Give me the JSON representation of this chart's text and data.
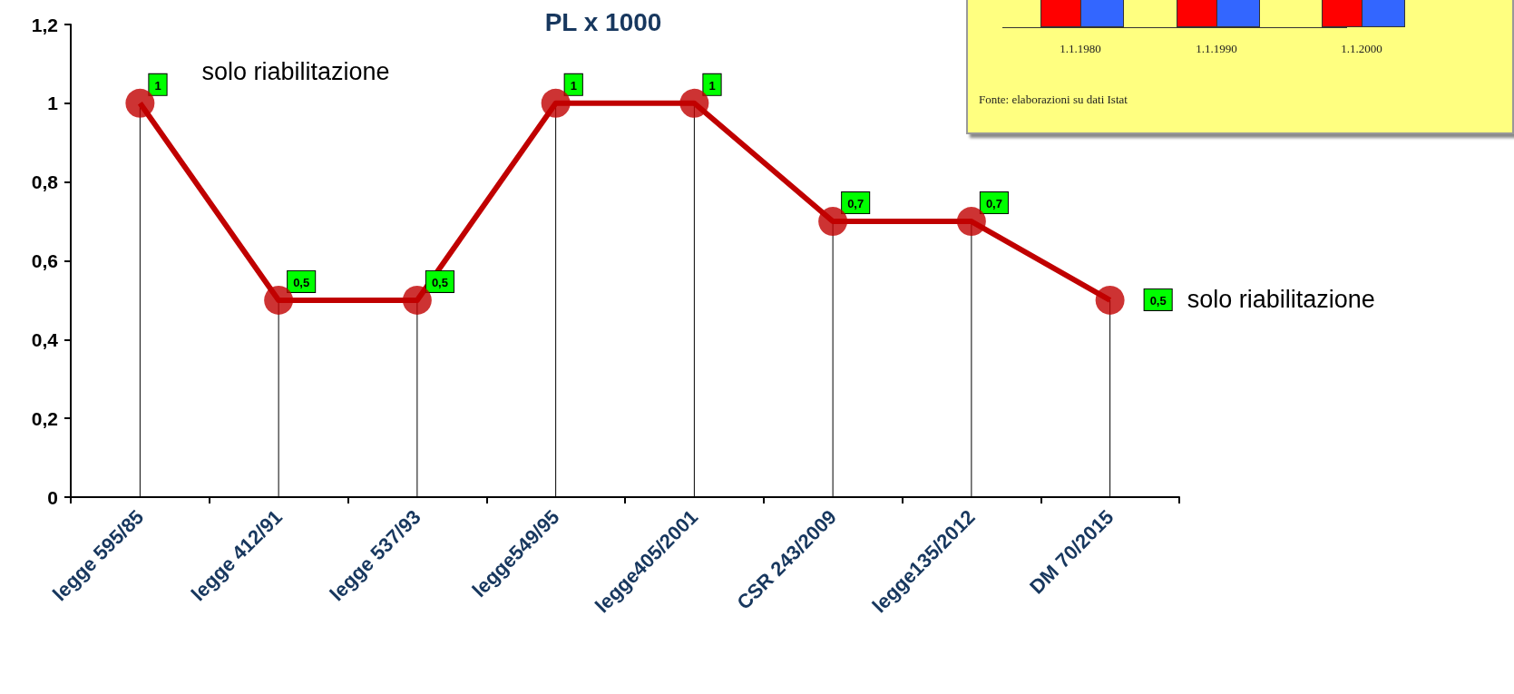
{
  "chart_data": {
    "type": "line",
    "title": "PL x 1000",
    "categories": [
      "legge 595/85",
      "legge 412/91",
      "legge 537/93",
      "legge549/95",
      "legge405/2001",
      "CSR 243/2009",
      "legge135/2012",
      "DM 70/2015"
    ],
    "series": [
      {
        "color": "#c00000",
        "values": [
          1,
          0.5,
          0.5,
          1,
          1,
          0.7,
          0.7,
          0.5
        ]
      },
      {
        "type": "lollipop",
        "color": "#c00000",
        "values": [
          1,
          0.5,
          0.5,
          1,
          1,
          0.7,
          0.7,
          0.5
        ]
      }
    ],
    "ylim": [
      0,
      1.2
    ],
    "yticks": [
      {
        "value": 0,
        "label": "0"
      },
      {
        "value": 0.2,
        "label": "0,2"
      },
      {
        "value": 0.4,
        "label": "0,4"
      },
      {
        "value": 0.6,
        "label": "0,6"
      },
      {
        "value": 0.8,
        "label": "0,8"
      },
      {
        "value": 1,
        "label": "1"
      },
      {
        "value": 1.2,
        "label": "1,2"
      }
    ],
    "value_labels": [
      "1",
      "0,5",
      "0,5",
      "1",
      "1",
      "0,7",
      "0,7",
      "0,5"
    ],
    "line_style": "solid",
    "annotations": [
      {
        "text": "solo riabilitazione",
        "x": "legge 595/85",
        "y": 1
      },
      "solo riabilitazione",
      "1.1.1980",
      "1.1.1990",
      "1.1.2000",
      "Fonte: elaborazioni su dati Istat"
    ]
  }
}
